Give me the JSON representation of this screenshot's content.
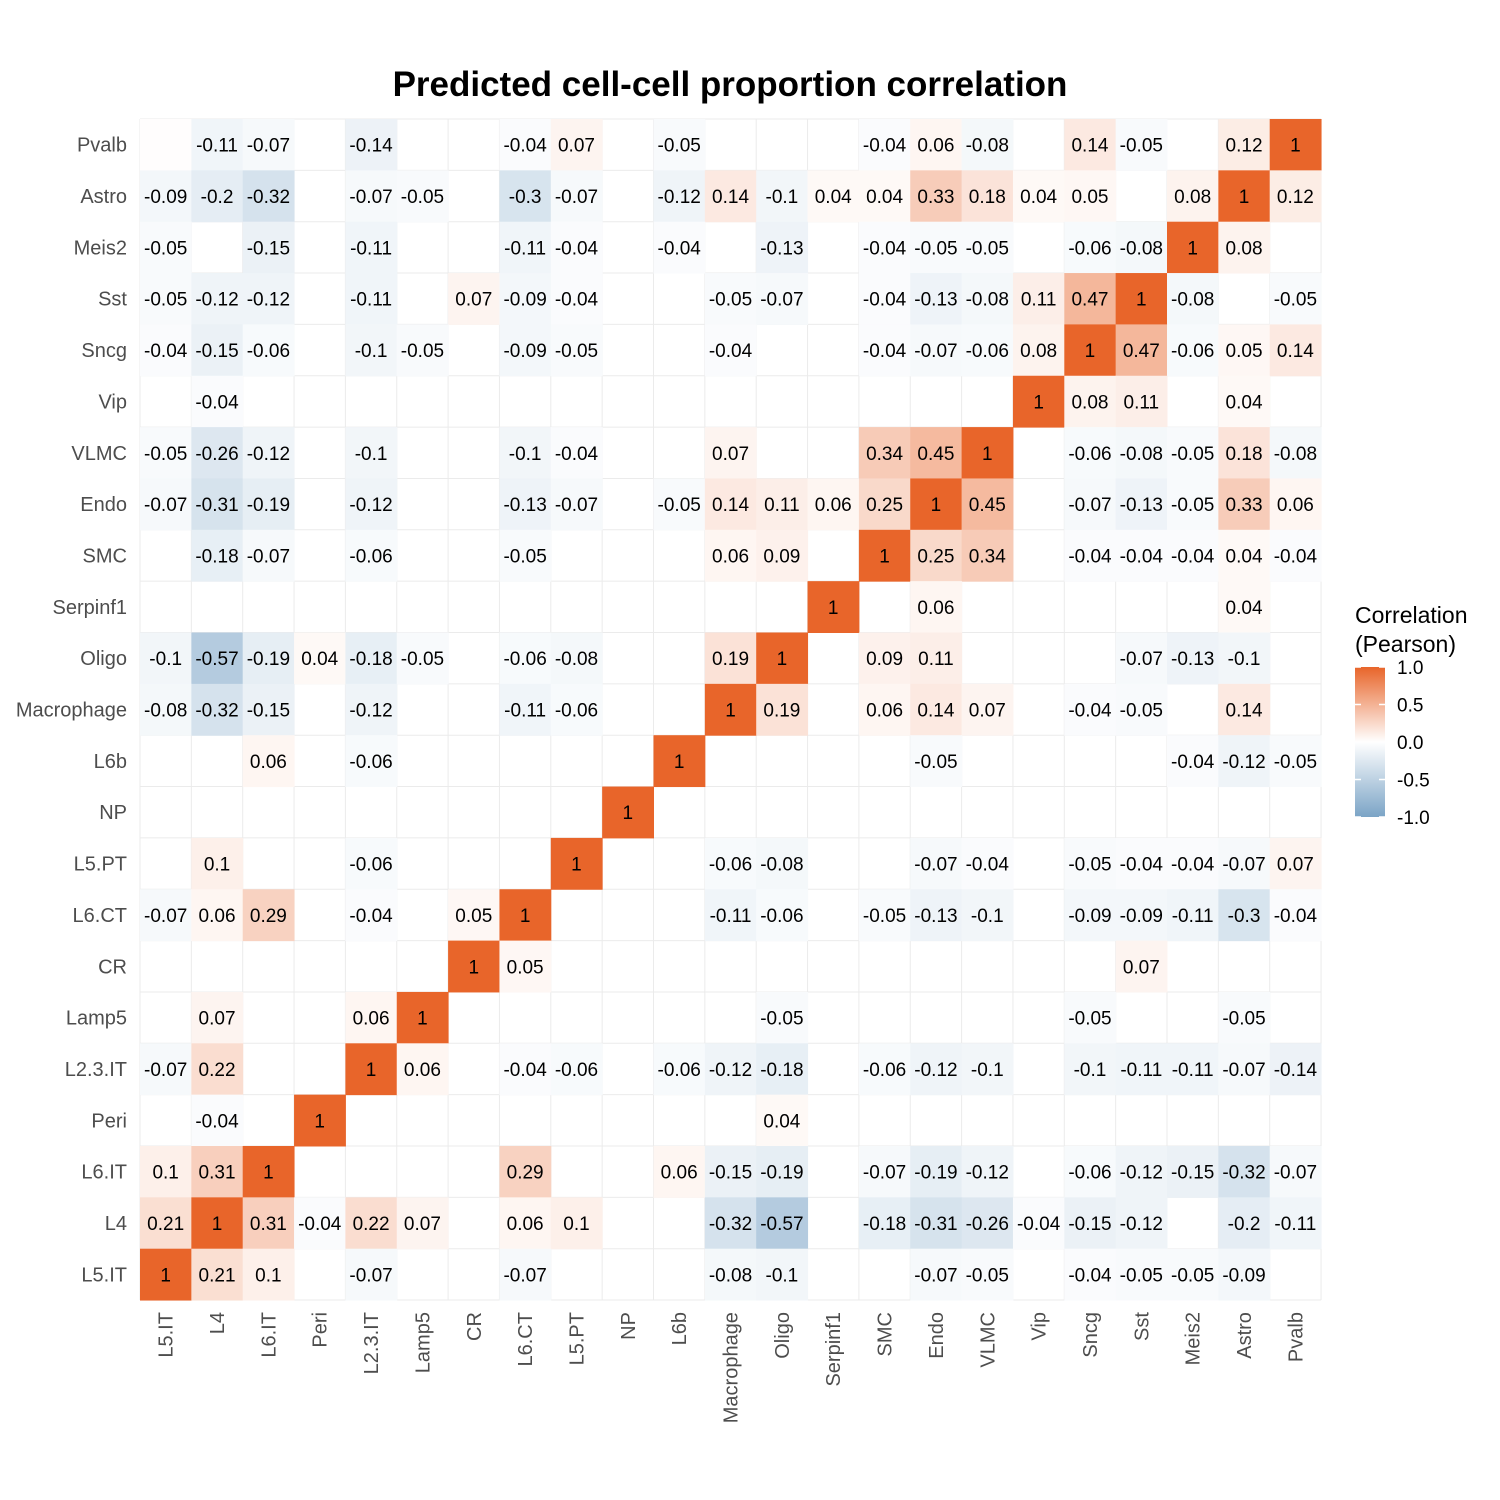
{
  "chart_data": {
    "type": "heatmap",
    "title": "Predicted cell-cell proportion correlation",
    "x_categories": [
      "L5.IT",
      "L4",
      "L6.IT",
      "Peri",
      "L2.3.IT",
      "Lamp5",
      "CR",
      "L6.CT",
      "L5.PT",
      "NP",
      "L6b",
      "Macrophage",
      "Oligo",
      "Serpinf1",
      "SMC",
      "Endo",
      "VLMC",
      "Vip",
      "Sncg",
      "Sst",
      "Meis2",
      "Astro",
      "Pvalb"
    ],
    "y_categories": [
      "Pvalb",
      "Astro",
      "Meis2",
      "Sst",
      "Sncg",
      "Vip",
      "VLMC",
      "Endo",
      "SMC",
      "Serpinf1",
      "Oligo",
      "Macrophage",
      "L6b",
      "NP",
      "L5.PT",
      "L6.CT",
      "CR",
      "Lamp5",
      "L2.3.IT",
      "Peri",
      "L6.IT",
      "L4",
      "L5.IT"
    ],
    "values": [
      [
        0.01,
        -0.11,
        -0.07,
        0,
        -0.14,
        0,
        0,
        -0.04,
        0.07,
        0,
        -0.05,
        0,
        0,
        0,
        -0.04,
        0.06,
        -0.08,
        0,
        0.14,
        -0.05,
        0,
        0.12,
        1
      ],
      [
        -0.09,
        -0.2,
        -0.32,
        0,
        -0.07,
        -0.05,
        0,
        -0.3,
        -0.07,
        0,
        -0.12,
        0.14,
        -0.1,
        0.04,
        0.04,
        0.33,
        0.18,
        0.04,
        0.05,
        0,
        0.08,
        1,
        0.12
      ],
      [
        -0.05,
        0,
        -0.15,
        0,
        -0.11,
        0,
        0,
        -0.11,
        -0.04,
        0,
        -0.04,
        0,
        -0.13,
        0,
        -0.04,
        -0.05,
        -0.05,
        0,
        -0.06,
        -0.08,
        1,
        0.08,
        0
      ],
      [
        -0.05,
        -0.12,
        -0.12,
        0,
        -0.11,
        0,
        0.07,
        -0.09,
        -0.04,
        0,
        0,
        -0.05,
        -0.07,
        0,
        -0.04,
        -0.13,
        -0.08,
        0.11,
        0.47,
        1,
        -0.08,
        0,
        -0.05
      ],
      [
        -0.04,
        -0.15,
        -0.06,
        0,
        -0.1,
        -0.05,
        0,
        -0.09,
        -0.05,
        0,
        0,
        -0.04,
        0,
        0,
        -0.04,
        -0.07,
        -0.06,
        0.08,
        1,
        0.47,
        -0.06,
        0.05,
        0.14
      ],
      [
        0,
        -0.04,
        0,
        0,
        0,
        0,
        0,
        0,
        0,
        0,
        0,
        0,
        0,
        0,
        0,
        0,
        0,
        1,
        0.08,
        0.11,
        0,
        0.04,
        0
      ],
      [
        -0.05,
        -0.26,
        -0.12,
        0,
        -0.1,
        0,
        0,
        -0.1,
        -0.04,
        0,
        0,
        0.07,
        0,
        0,
        0.34,
        0.45,
        1,
        0,
        -0.06,
        -0.08,
        -0.05,
        0.18,
        -0.08
      ],
      [
        -0.07,
        -0.31,
        -0.19,
        0,
        -0.12,
        0,
        0,
        -0.13,
        -0.07,
        0,
        -0.05,
        0.14,
        0.11,
        0.06,
        0.25,
        1,
        0.45,
        0,
        -0.07,
        -0.13,
        -0.05,
        0.33,
        0.06
      ],
      [
        0,
        -0.18,
        -0.07,
        0,
        -0.06,
        0,
        0,
        -0.05,
        0,
        0,
        0,
        0.06,
        0.09,
        0,
        1,
        0.25,
        0.34,
        0,
        -0.04,
        -0.04,
        -0.04,
        0.04,
        -0.04
      ],
      [
        0,
        0,
        0,
        0,
        0,
        0,
        0,
        0,
        0,
        0,
        0,
        0,
        0,
        1,
        0,
        0.06,
        0,
        0,
        0,
        0,
        0,
        0.04,
        0
      ],
      [
        -0.1,
        -0.57,
        -0.19,
        0.04,
        -0.18,
        -0.05,
        0,
        -0.06,
        -0.08,
        0,
        0,
        0.19,
        1,
        0,
        0.09,
        0.11,
        0,
        0,
        0,
        -0.07,
        -0.13,
        -0.1,
        0
      ],
      [
        -0.08,
        -0.32,
        -0.15,
        0,
        -0.12,
        0,
        0,
        -0.11,
        -0.06,
        0,
        0,
        1,
        0.19,
        0,
        0.06,
        0.14,
        0.07,
        0,
        -0.04,
        -0.05,
        0,
        0.14,
        0
      ],
      [
        0,
        0,
        0.06,
        0,
        -0.06,
        0,
        0,
        0,
        0,
        0,
        1,
        0,
        0,
        0,
        0,
        -0.05,
        0,
        0,
        0,
        0,
        -0.04,
        -0.12,
        -0.05
      ],
      [
        0,
        0,
        0,
        0,
        0,
        0,
        0,
        0,
        0,
        1,
        0,
        0,
        0,
        0,
        0,
        0,
        0,
        0,
        0,
        0,
        0,
        0,
        0
      ],
      [
        0,
        0.1,
        0,
        0,
        -0.06,
        0,
        0,
        0,
        1,
        0,
        0,
        -0.06,
        -0.08,
        0,
        0,
        -0.07,
        -0.04,
        0,
        -0.05,
        -0.04,
        -0.04,
        -0.07,
        0.07
      ],
      [
        -0.07,
        0.06,
        0.29,
        0,
        -0.04,
        0,
        0.05,
        1,
        0,
        0,
        0,
        -0.11,
        -0.06,
        0,
        -0.05,
        -0.13,
        -0.1,
        0,
        -0.09,
        -0.09,
        -0.11,
        -0.3,
        -0.04
      ],
      [
        0,
        0,
        0,
        0,
        0,
        0,
        1,
        0.05,
        0,
        0,
        0,
        0,
        0,
        0,
        0,
        0,
        0,
        0,
        0,
        0.07,
        0,
        0,
        0
      ],
      [
        0,
        0.07,
        0,
        0,
        0.06,
        1,
        0,
        0,
        0,
        0,
        0,
        0,
        -0.05,
        0,
        0,
        0,
        0,
        0,
        -0.05,
        0,
        0,
        -0.05,
        0
      ],
      [
        -0.07,
        0.22,
        0,
        0,
        1,
        0.06,
        0,
        -0.04,
        -0.06,
        0,
        -0.06,
        -0.12,
        -0.18,
        0,
        -0.06,
        -0.12,
        -0.1,
        0,
        -0.1,
        -0.11,
        -0.11,
        -0.07,
        -0.14
      ],
      [
        0,
        -0.04,
        0,
        1,
        0,
        0,
        0,
        0,
        0,
        0,
        0,
        0,
        0.04,
        0,
        0,
        0,
        0,
        0,
        0,
        0,
        0,
        0,
        0
      ],
      [
        0.1,
        0.31,
        1,
        0,
        0,
        0,
        0,
        0.29,
        0,
        0,
        0.06,
        -0.15,
        -0.19,
        0,
        -0.07,
        -0.19,
        -0.12,
        0,
        -0.06,
        -0.12,
        -0.15,
        -0.32,
        -0.07
      ],
      [
        0.21,
        1,
        0.31,
        -0.04,
        0.22,
        0.07,
        0,
        0.06,
        0.1,
        0,
        0,
        -0.32,
        -0.57,
        0,
        -0.18,
        -0.31,
        -0.26,
        -0.04,
        -0.15,
        -0.12,
        0,
        -0.2,
        -0.11
      ],
      [
        1,
        0.21,
        0.1,
        0,
        -0.07,
        0,
        0,
        -0.07,
        0,
        0,
        0,
        -0.08,
        -0.1,
        0,
        0,
        -0.07,
        -0.05,
        0,
        -0.04,
        -0.05,
        -0.05,
        -0.09,
        0
      ]
    ],
    "labels": [
      [
        "",
        "-0.11",
        "-0.07",
        "",
        "-0.14",
        "",
        "",
        "-0.04",
        "0.07",
        "",
        "-0.05",
        "",
        "",
        "",
        "-0.04",
        "0.06",
        "-0.08",
        "",
        "0.14",
        "-0.05",
        "",
        "0.12",
        "1"
      ],
      [
        "-0.09",
        "-0.2",
        "-0.32",
        "",
        "-0.07",
        "-0.05",
        "",
        "-0.3",
        "-0.07",
        "",
        "-0.12",
        "0.14",
        "-0.1",
        "0.04",
        "0.04",
        "0.33",
        "0.18",
        "0.04",
        "0.05",
        "",
        "0.08",
        "1",
        "0.12"
      ],
      [
        "-0.05",
        "",
        "-0.15",
        "",
        "-0.11",
        "",
        "",
        "-0.11",
        "-0.04",
        "",
        "-0.04",
        "",
        "-0.13",
        "",
        "-0.04",
        "-0.05",
        "-0.05",
        "",
        "-0.06",
        "-0.08",
        "1",
        "0.08",
        ""
      ],
      [
        "-0.05",
        "-0.12",
        "-0.12",
        "",
        "-0.11",
        "",
        "0.07",
        "-0.09",
        "-0.04",
        "",
        "",
        "-0.05",
        "-0.07",
        "",
        "-0.04",
        "-0.13",
        "-0.08",
        "0.11",
        "0.47",
        "1",
        "-0.08",
        "",
        "-0.05"
      ],
      [
        "-0.04",
        "-0.15",
        "-0.06",
        "",
        "-0.1",
        "-0.05",
        "",
        "-0.09",
        "-0.05",
        "",
        "",
        "-0.04",
        "",
        "",
        "-0.04",
        "-0.07",
        "-0.06",
        "0.08",
        "1",
        "0.47",
        "-0.06",
        "0.05",
        "0.14"
      ],
      [
        "",
        "-0.04",
        "",
        "",
        "",
        "",
        "",
        "",
        "",
        "",
        "",
        "",
        "",
        "",
        "",
        "",
        "",
        "1",
        "0.08",
        "0.11",
        "",
        "0.04",
        ""
      ],
      [
        "-0.05",
        "-0.26",
        "-0.12",
        "",
        "-0.1",
        "",
        "",
        "-0.1",
        "-0.04",
        "",
        "",
        "0.07",
        "",
        "",
        "0.34",
        "0.45",
        "1",
        "",
        "-0.06",
        "-0.08",
        "-0.05",
        "0.18",
        "-0.08"
      ],
      [
        "-0.07",
        "-0.31",
        "-0.19",
        "",
        "-0.12",
        "",
        "",
        "-0.13",
        "-0.07",
        "",
        "-0.05",
        "0.14",
        "0.11",
        "0.06",
        "0.25",
        "1",
        "0.45",
        "",
        "-0.07",
        "-0.13",
        "-0.05",
        "0.33",
        "0.06"
      ],
      [
        "",
        "-0.18",
        "-0.07",
        "",
        "-0.06",
        "",
        "",
        "-0.05",
        "",
        "",
        "",
        "0.06",
        "0.09",
        "",
        "1",
        "0.25",
        "0.34",
        "",
        "-0.04",
        "-0.04",
        "-0.04",
        "0.04",
        "-0.04"
      ],
      [
        "",
        "",
        "",
        "",
        "",
        "",
        "",
        "",
        "",
        "",
        "",
        "",
        "",
        "1",
        "",
        "0.06",
        "",
        "",
        "",
        "",
        "",
        "0.04",
        ""
      ],
      [
        "-0.1",
        "-0.57",
        "-0.19",
        "0.04",
        "-0.18",
        "-0.05",
        "",
        "-0.06",
        "-0.08",
        "",
        "",
        "0.19",
        "1",
        "",
        "0.09",
        "0.11",
        "",
        "",
        "",
        "-0.07",
        "-0.13",
        "-0.1",
        ""
      ],
      [
        "-0.08",
        "-0.32",
        "-0.15",
        "",
        "-0.12",
        "",
        "",
        "-0.11",
        "-0.06",
        "",
        "",
        "1",
        "0.19",
        "",
        "0.06",
        "0.14",
        "0.07",
        "",
        "-0.04",
        "-0.05",
        "",
        "0.14",
        ""
      ],
      [
        "",
        "",
        "0.06",
        "",
        "-0.06",
        "",
        "",
        "",
        "",
        "",
        "1",
        "",
        "",
        "",
        "",
        "-0.05",
        "",
        "",
        "",
        "",
        "-0.04",
        "-0.12",
        "-0.05"
      ],
      [
        "",
        "",
        "",
        "",
        "",
        "",
        "",
        "",
        "",
        "1",
        "",
        "",
        "",
        "",
        "",
        "",
        "",
        "",
        "",
        "",
        "",
        "",
        ""
      ],
      [
        "",
        "0.1",
        "",
        "",
        "-0.06",
        "",
        "",
        "",
        "1",
        "",
        "",
        "-0.06",
        "-0.08",
        "",
        "",
        "-0.07",
        "-0.04",
        "",
        "-0.05",
        "-0.04",
        "-0.04",
        "-0.07",
        "0.07"
      ],
      [
        "-0.07",
        "0.06",
        "0.29",
        "",
        "-0.04",
        "",
        "0.05",
        "1",
        "",
        "",
        "",
        "-0.11",
        "-0.06",
        "",
        "-0.05",
        "-0.13",
        "-0.1",
        "",
        "-0.09",
        "-0.09",
        "-0.11",
        "-0.3",
        "-0.04"
      ],
      [
        "",
        "",
        "",
        "",
        "",
        "",
        "1",
        "0.05",
        "",
        "",
        "",
        "",
        "",
        "",
        "",
        "",
        "",
        "",
        "",
        "0.07",
        "",
        "",
        ""
      ],
      [
        "",
        "0.07",
        "",
        "",
        "0.06",
        "1",
        "",
        "",
        "",
        "",
        "",
        "",
        "-0.05",
        "",
        "",
        "",
        "",
        "",
        "-0.05",
        "",
        "",
        "-0.05",
        ""
      ],
      [
        "-0.07",
        "0.22",
        "",
        "",
        "1",
        "0.06",
        "",
        "-0.04",
        "-0.06",
        "",
        "-0.06",
        "-0.12",
        "-0.18",
        "",
        "-0.06",
        "-0.12",
        "-0.1",
        "",
        "-0.1",
        "-0.11",
        "-0.11",
        "-0.07",
        "-0.14"
      ],
      [
        "",
        "-0.04",
        "",
        "1",
        "",
        "",
        "",
        "",
        "",
        "",
        "",
        "",
        "0.04",
        "",
        "",
        "",
        "",
        "",
        "",
        "",
        "",
        "",
        ""
      ],
      [
        "0.1",
        "0.31",
        "1",
        "",
        "",
        "",
        "",
        "0.29",
        "",
        "",
        "0.06",
        "-0.15",
        "-0.19",
        "",
        "-0.07",
        "-0.19",
        "-0.12",
        "",
        "-0.06",
        "-0.12",
        "-0.15",
        "-0.32",
        "-0.07"
      ],
      [
        "0.21",
        "1",
        "0.31",
        "-0.04",
        "0.22",
        "0.07",
        "",
        "0.06",
        "0.1",
        "",
        "",
        "-0.32",
        "-0.57",
        "",
        "-0.18",
        "-0.31",
        "-0.26",
        "-0.04",
        "-0.15",
        "-0.12",
        "",
        "-0.2",
        "-0.11"
      ],
      [
        "1",
        "0.21",
        "0.1",
        "",
        "-0.07",
        "",
        "",
        "-0.07",
        "",
        "",
        "",
        "-0.08",
        "-0.1",
        "",
        "",
        "-0.07",
        "-0.05",
        "",
        "-0.04",
        "-0.05",
        "-0.05",
        "-0.09",
        ""
      ]
    ],
    "legend": {
      "title_line1": "Correlation",
      "title_line2": "(Pearson)",
      "ticks": [
        "1.0",
        "0.5",
        "0.0",
        "-0.5",
        "-1.0"
      ],
      "tick_values": [
        1.0,
        0.5,
        0.0,
        -0.5,
        -1.0
      ],
      "range": [
        -1,
        1
      ],
      "placement": "right"
    },
    "colors": {
      "high": "#E8652A",
      "mid": "#FFFFFF",
      "low": "#7BA4C6",
      "grid": "#EBEBEB"
    }
  }
}
